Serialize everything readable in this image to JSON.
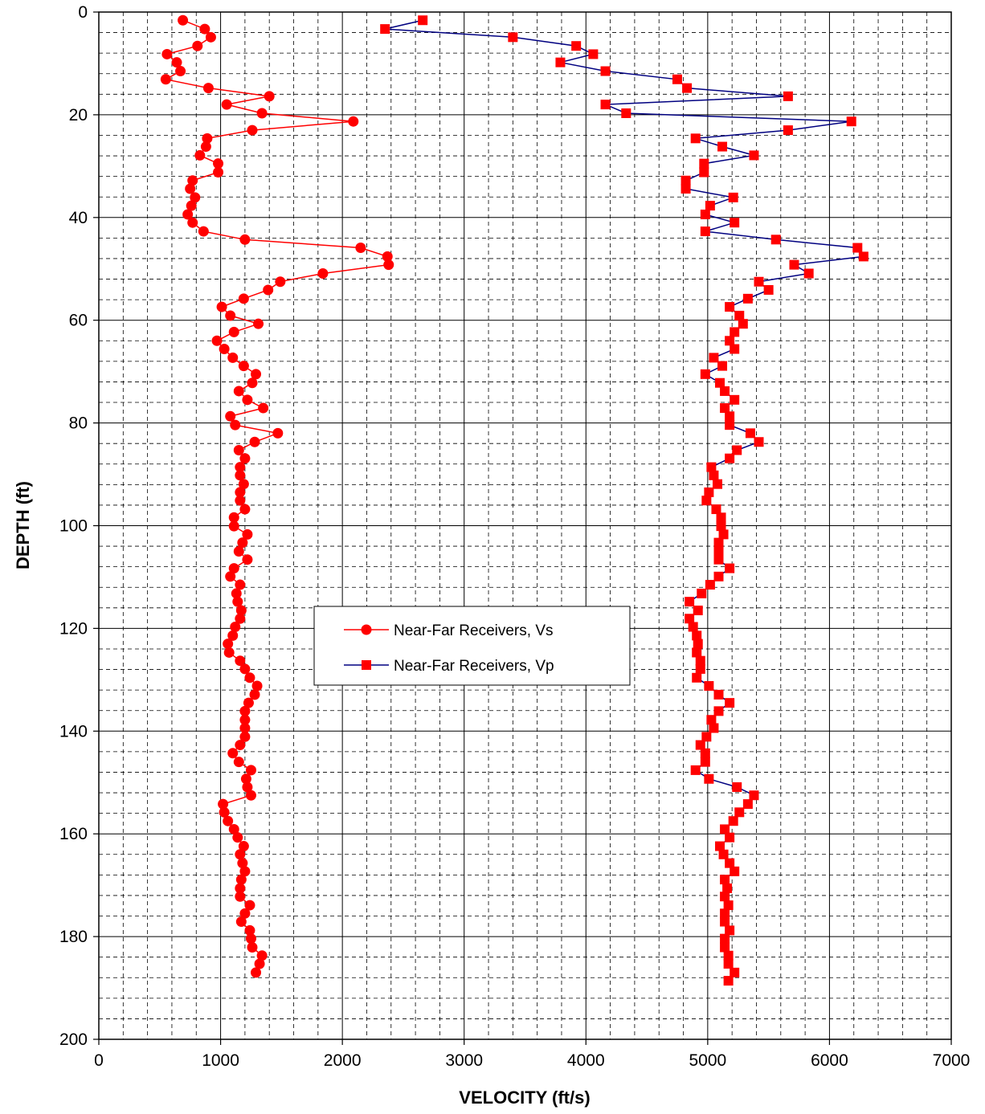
{
  "chart_data": {
    "type": "scatter",
    "xlabel": "VELOCITY (ft/s)",
    "ylabel": "DEPTH (ft)",
    "xlim": [
      0,
      7000
    ],
    "ylim": [
      0,
      200
    ],
    "y_inverted": true,
    "x_major_ticks": [
      0,
      1000,
      2000,
      3000,
      4000,
      5000,
      6000,
      7000
    ],
    "y_major_ticks": [
      0,
      20,
      40,
      60,
      80,
      100,
      120,
      140,
      160,
      180,
      200
    ],
    "grid": "major solid, minor dashed",
    "legend_position": "center",
    "series": [
      {
        "name": "Near-Far Receivers, Vs",
        "line_color": "#ff0000",
        "marker_color": "#ff0000",
        "marker": "circle",
        "points": [
          [
            690,
            1.6
          ],
          [
            870,
            3.3
          ],
          [
            920,
            4.9
          ],
          [
            810,
            6.6
          ],
          [
            560,
            8.2
          ],
          [
            640,
            9.8
          ],
          [
            670,
            11.5
          ],
          [
            550,
            13.1
          ],
          [
            900,
            14.8
          ],
          [
            1400,
            16.4
          ],
          [
            1050,
            18.0
          ],
          [
            1340,
            19.7
          ],
          [
            2090,
            21.3
          ],
          [
            1260,
            23.0
          ],
          [
            890,
            24.6
          ],
          [
            880,
            26.2
          ],
          [
            830,
            27.9
          ],
          [
            980,
            29.5
          ],
          [
            980,
            31.2
          ],
          [
            770,
            32.8
          ],
          [
            750,
            34.4
          ],
          [
            790,
            36.1
          ],
          [
            760,
            37.7
          ],
          [
            730,
            39.4
          ],
          [
            770,
            41.0
          ],
          [
            860,
            42.7
          ],
          [
            1200,
            44.3
          ],
          [
            2150,
            45.9
          ],
          [
            2370,
            47.6
          ],
          [
            2380,
            49.2
          ],
          [
            1840,
            50.9
          ],
          [
            1490,
            52.5
          ],
          [
            1390,
            54.1
          ],
          [
            1190,
            55.8
          ],
          [
            1010,
            57.4
          ],
          [
            1080,
            59.1
          ],
          [
            1310,
            60.7
          ],
          [
            1110,
            62.3
          ],
          [
            970,
            64.0
          ],
          [
            1030,
            65.6
          ],
          [
            1100,
            67.3
          ],
          [
            1190,
            68.9
          ],
          [
            1290,
            70.5
          ],
          [
            1260,
            72.2
          ],
          [
            1150,
            73.8
          ],
          [
            1220,
            75.5
          ],
          [
            1350,
            77.1
          ],
          [
            1080,
            78.7
          ],
          [
            1120,
            80.4
          ],
          [
            1470,
            82.0
          ],
          [
            1280,
            83.7
          ],
          [
            1150,
            85.3
          ],
          [
            1200,
            86.9
          ],
          [
            1160,
            88.6
          ],
          [
            1160,
            90.2
          ],
          [
            1190,
            91.9
          ],
          [
            1160,
            93.5
          ],
          [
            1160,
            95.1
          ],
          [
            1200,
            96.8
          ],
          [
            1110,
            98.4
          ],
          [
            1110,
            100.1
          ],
          [
            1220,
            101.7
          ],
          [
            1180,
            103.3
          ],
          [
            1150,
            105.0
          ],
          [
            1220,
            106.6
          ],
          [
            1110,
            108.3
          ],
          [
            1080,
            109.9
          ],
          [
            1160,
            111.5
          ],
          [
            1130,
            113.2
          ],
          [
            1140,
            114.8
          ],
          [
            1170,
            116.5
          ],
          [
            1160,
            118.1
          ],
          [
            1120,
            119.7
          ],
          [
            1100,
            121.4
          ],
          [
            1060,
            123.0
          ],
          [
            1070,
            124.7
          ],
          [
            1160,
            126.3
          ],
          [
            1200,
            127.9
          ],
          [
            1240,
            129.6
          ],
          [
            1300,
            131.2
          ],
          [
            1280,
            132.9
          ],
          [
            1230,
            134.5
          ],
          [
            1200,
            136.1
          ],
          [
            1200,
            137.8
          ],
          [
            1200,
            139.4
          ],
          [
            1200,
            141.1
          ],
          [
            1160,
            142.7
          ],
          [
            1100,
            144.3
          ],
          [
            1150,
            146.0
          ],
          [
            1250,
            147.6
          ],
          [
            1210,
            149.3
          ],
          [
            1220,
            150.9
          ],
          [
            1250,
            152.5
          ],
          [
            1020,
            154.2
          ],
          [
            1030,
            155.8
          ],
          [
            1060,
            157.5
          ],
          [
            1110,
            159.1
          ],
          [
            1140,
            160.7
          ],
          [
            1190,
            162.4
          ],
          [
            1160,
            164.0
          ],
          [
            1180,
            165.7
          ],
          [
            1200,
            167.3
          ],
          [
            1170,
            168.9
          ],
          [
            1160,
            170.6
          ],
          [
            1160,
            172.2
          ],
          [
            1240,
            173.9
          ],
          [
            1200,
            175.5
          ],
          [
            1170,
            177.1
          ],
          [
            1240,
            178.8
          ],
          [
            1250,
            180.4
          ],
          [
            1260,
            182.1
          ],
          [
            1340,
            183.7
          ],
          [
            1320,
            185.3
          ],
          [
            1290,
            187.0
          ]
        ]
      },
      {
        "name": "Near-Far Receivers, Vp",
        "line_color": "#000080",
        "marker_color": "#ff0000",
        "marker": "square",
        "points": [
          [
            2660,
            1.6
          ],
          [
            2350,
            3.3
          ],
          [
            3400,
            4.9
          ],
          [
            3920,
            6.6
          ],
          [
            4060,
            8.2
          ],
          [
            3790,
            9.8
          ],
          [
            4160,
            11.5
          ],
          [
            4750,
            13.1
          ],
          [
            4830,
            14.8
          ],
          [
            5660,
            16.4
          ],
          [
            4160,
            18.0
          ],
          [
            4330,
            19.7
          ],
          [
            6180,
            21.3
          ],
          [
            5660,
            23.0
          ],
          [
            4900,
            24.6
          ],
          [
            5120,
            26.2
          ],
          [
            5380,
            27.9
          ],
          [
            4970,
            29.5
          ],
          [
            4970,
            31.2
          ],
          [
            4820,
            32.8
          ],
          [
            4820,
            34.4
          ],
          [
            5210,
            36.1
          ],
          [
            5020,
            37.7
          ],
          [
            4980,
            39.4
          ],
          [
            5220,
            41.0
          ],
          [
            4980,
            42.7
          ],
          [
            5560,
            44.3
          ],
          [
            6230,
            45.9
          ],
          [
            6280,
            47.6
          ],
          [
            5710,
            49.2
          ],
          [
            5830,
            50.9
          ],
          [
            5420,
            52.5
          ],
          [
            5500,
            54.1
          ],
          [
            5330,
            55.8
          ],
          [
            5180,
            57.4
          ],
          [
            5260,
            59.1
          ],
          [
            5290,
            60.7
          ],
          [
            5220,
            62.3
          ],
          [
            5180,
            64.0
          ],
          [
            5220,
            65.6
          ],
          [
            5050,
            67.3
          ],
          [
            5120,
            68.9
          ],
          [
            4980,
            70.5
          ],
          [
            5100,
            72.2
          ],
          [
            5140,
            73.8
          ],
          [
            5220,
            75.5
          ],
          [
            5140,
            77.1
          ],
          [
            5180,
            78.7
          ],
          [
            5180,
            80.4
          ],
          [
            5350,
            82.0
          ],
          [
            5420,
            83.7
          ],
          [
            5240,
            85.3
          ],
          [
            5180,
            86.9
          ],
          [
            5030,
            88.6
          ],
          [
            5050,
            90.2
          ],
          [
            5080,
            91.9
          ],
          [
            5010,
            93.5
          ],
          [
            4990,
            95.1
          ],
          [
            5070,
            96.8
          ],
          [
            5110,
            98.4
          ],
          [
            5110,
            100.1
          ],
          [
            5130,
            101.7
          ],
          [
            5090,
            103.3
          ],
          [
            5090,
            105.0
          ],
          [
            5090,
            106.6
          ],
          [
            5180,
            108.3
          ],
          [
            5090,
            109.9
          ],
          [
            5020,
            111.5
          ],
          [
            4950,
            113.2
          ],
          [
            4850,
            114.8
          ],
          [
            4920,
            116.5
          ],
          [
            4850,
            118.1
          ],
          [
            4880,
            119.7
          ],
          [
            4910,
            121.4
          ],
          [
            4920,
            123.0
          ],
          [
            4910,
            124.7
          ],
          [
            4940,
            126.3
          ],
          [
            4940,
            127.9
          ],
          [
            4910,
            129.6
          ],
          [
            5010,
            131.2
          ],
          [
            5090,
            132.9
          ],
          [
            5180,
            134.5
          ],
          [
            5090,
            136.1
          ],
          [
            5030,
            137.8
          ],
          [
            5050,
            139.4
          ],
          [
            4990,
            141.1
          ],
          [
            4940,
            142.7
          ],
          [
            4980,
            144.3
          ],
          [
            4980,
            146.0
          ],
          [
            4900,
            147.6
          ],
          [
            5010,
            149.3
          ],
          [
            5240,
            150.9
          ],
          [
            5380,
            152.5
          ],
          [
            5330,
            154.2
          ],
          [
            5260,
            155.8
          ],
          [
            5210,
            157.5
          ],
          [
            5140,
            159.1
          ],
          [
            5180,
            160.7
          ],
          [
            5100,
            162.4
          ],
          [
            5130,
            164.0
          ],
          [
            5180,
            165.7
          ],
          [
            5220,
            167.3
          ],
          [
            5140,
            168.9
          ],
          [
            5160,
            170.6
          ],
          [
            5140,
            172.2
          ],
          [
            5170,
            173.9
          ],
          [
            5140,
            175.5
          ],
          [
            5140,
            177.1
          ],
          [
            5180,
            178.8
          ],
          [
            5140,
            180.4
          ],
          [
            5140,
            182.1
          ],
          [
            5170,
            183.7
          ],
          [
            5170,
            185.3
          ],
          [
            5220,
            187.0
          ],
          [
            5170,
            188.6
          ]
        ]
      }
    ]
  }
}
